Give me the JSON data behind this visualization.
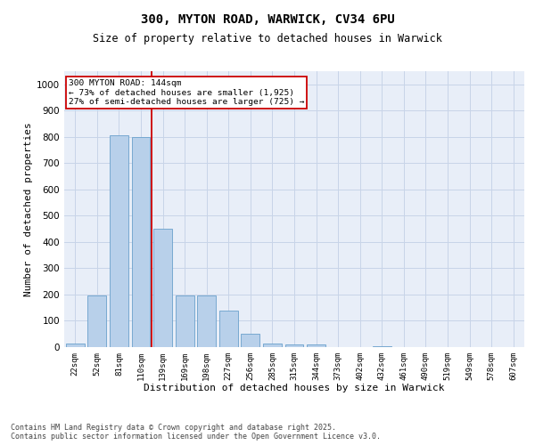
{
  "title1": "300, MYTON ROAD, WARWICK, CV34 6PU",
  "title2": "Size of property relative to detached houses in Warwick",
  "xlabel": "Distribution of detached houses by size in Warwick",
  "ylabel": "Number of detached properties",
  "categories": [
    "22sqm",
    "52sqm",
    "81sqm",
    "110sqm",
    "139sqm",
    "169sqm",
    "198sqm",
    "227sqm",
    "256sqm",
    "285sqm",
    "315sqm",
    "344sqm",
    "373sqm",
    "402sqm",
    "432sqm",
    "461sqm",
    "490sqm",
    "519sqm",
    "549sqm",
    "578sqm",
    "607sqm"
  ],
  "values": [
    15,
    195,
    805,
    800,
    450,
    195,
    195,
    140,
    50,
    15,
    10,
    10,
    0,
    0,
    5,
    0,
    0,
    0,
    0,
    0,
    0
  ],
  "bar_color": "#b8d0ea",
  "bar_edge_color": "#6aa0cc",
  "red_line_x": 3.5,
  "annotation_line1": "300 MYTON ROAD: 144sqm",
  "annotation_line2": "← 73% of detached houses are smaller (1,925)",
  "annotation_line3": "27% of semi-detached houses are larger (725) →",
  "annotation_box_color": "#ffffff",
  "annotation_box_edge_color": "#cc0000",
  "red_line_color": "#cc0000",
  "ylim": [
    0,
    1050
  ],
  "yticks": [
    0,
    100,
    200,
    300,
    400,
    500,
    600,
    700,
    800,
    900,
    1000
  ],
  "grid_color": "#c8d4e8",
  "background_color": "#ffffff",
  "plot_bg_color": "#e8eef8",
  "footer1": "Contains HM Land Registry data © Crown copyright and database right 2025.",
  "footer2": "Contains public sector information licensed under the Open Government Licence v3.0."
}
